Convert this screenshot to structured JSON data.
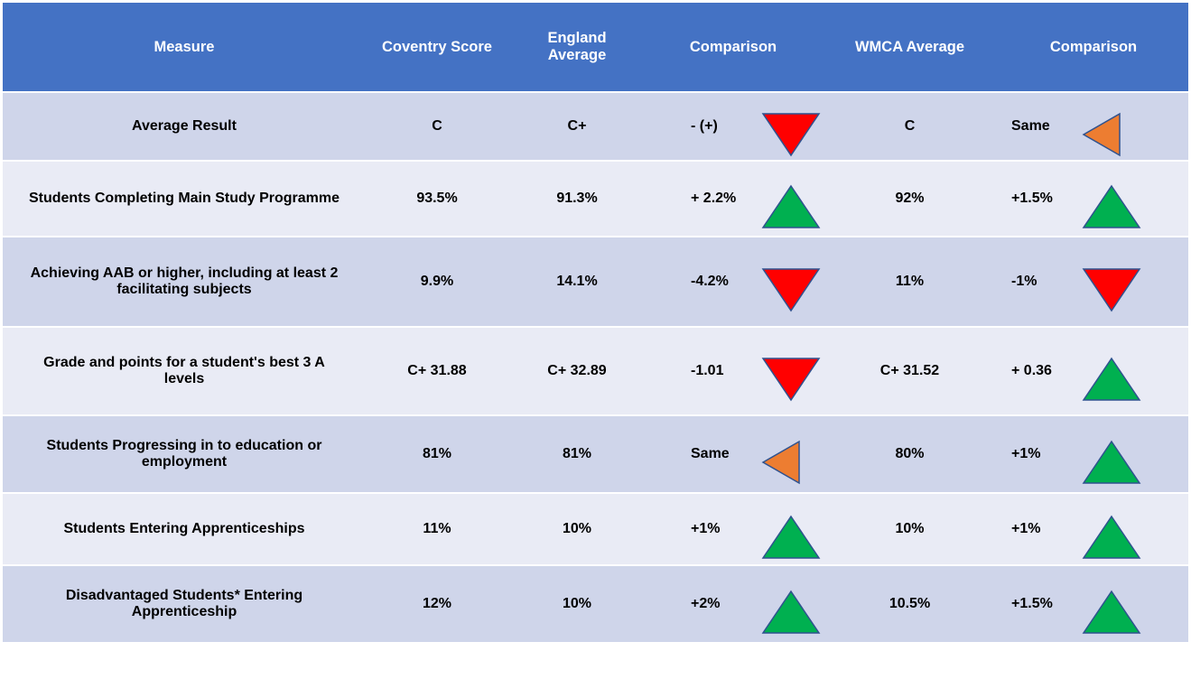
{
  "table": {
    "header": [
      "Measure",
      "Coventry Score",
      "England Average",
      "Comparison",
      "WMCA Average",
      "Comparison"
    ],
    "rows": [
      [
        "Average Result",
        "C",
        "C+",
        "- (+)",
        "C",
        "Same"
      ],
      [
        "Students Completing Main Study Programme",
        "93.5%",
        "91.3%",
        "+ 2.2%",
        "92%",
        "+1.5%"
      ],
      [
        "Achieving AAB or higher, including at least 2 facilitating subjects",
        "9.9%",
        "14.1%",
        "-4.2%",
        "11%",
        "-1%"
      ],
      [
        "Grade and points for a student's best 3 A levels",
        "C+ 31.88",
        "C+ 32.89",
        "-1.01",
        "C+ 31.52",
        "+ 0.36"
      ],
      [
        "Students Progressing in to education or employment",
        "81%",
        "81%",
        "Same",
        "80%",
        "+1%"
      ],
      [
        "Students Entering Apprenticeships",
        "11%",
        "10%",
        "+1%",
        "10%",
        "+1%"
      ],
      [
        "Disadvantaged Students* Entering Apprenticeship",
        "12%",
        "10%",
        "+2%",
        "10.5%",
        "+1.5%"
      ]
    ]
  }
}
